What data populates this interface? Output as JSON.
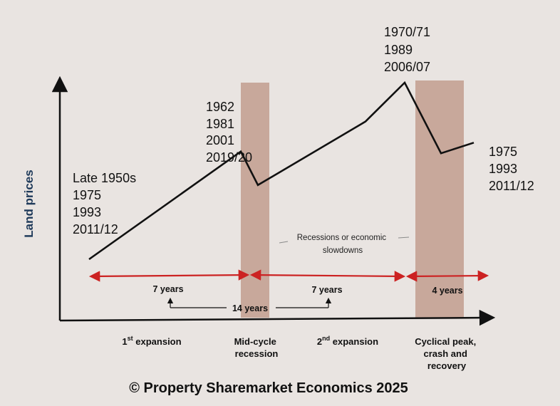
{
  "axis": {
    "ylabel": "Land prices"
  },
  "price_line": [
    {
      "phase": "start",
      "level": 0
    },
    {
      "phase": "mid-cycle peak",
      "level": 0.61
    },
    {
      "phase": "mid-cycle trough",
      "level": 0.42
    },
    {
      "phase": "late expansion",
      "level": 0.78
    },
    {
      "phase": "cyclical peak",
      "level": 1.0
    },
    {
      "phase": "crash low",
      "level": 0.6
    },
    {
      "phase": "recovery",
      "level": 0.66
    }
  ],
  "recession_bands_label": [
    "Recessions or economic",
    "slowdowns"
  ],
  "year_groups": {
    "start": [
      "Late 1950s",
      "1975",
      "1993",
      "2011/12"
    ],
    "mid_cycle": [
      "1962",
      "1981",
      "2001",
      "2019/20"
    ],
    "peak": [
      "1970/71",
      "1989",
      "2006/07"
    ],
    "end": [
      "1975",
      "1993",
      "2011/12"
    ]
  },
  "durations": {
    "first": "7 years",
    "second": "7 years",
    "third": "4 years",
    "total": "14 years"
  },
  "phases": {
    "p1_base": "1",
    "p1_sup": "st",
    "p1_rest": " expansion",
    "p2_line1": "Mid-cycle",
    "p2_line2": "recession",
    "p3_base": "2",
    "p3_sup": "nd",
    "p3_rest": " expansion",
    "p4_line1": "Cyclical peak,",
    "p4_line2": "crash and",
    "p4_line3": "recovery"
  },
  "copyright": "© Property Sharemarket Economics 2025",
  "colors": {
    "background": "#e9e4e1",
    "band": "#c8a89b",
    "arrow_red": "#cc2222",
    "line": "#111111",
    "ylabel": "#1f3a5a"
  }
}
